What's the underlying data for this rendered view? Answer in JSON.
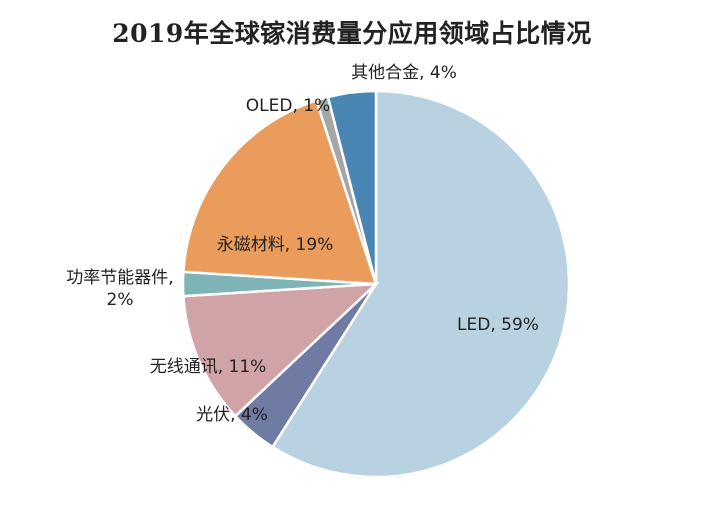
{
  "chart_data": {
    "type": "pie",
    "title": "2019年全球镓消费量分应用领域占比情况",
    "slices": [
      {
        "label": "LED",
        "value": 59,
        "display": "59%",
        "color": "#b8d2e2"
      },
      {
        "label": "光伏",
        "value": 4,
        "display": "4%",
        "color": "#6f7ba3"
      },
      {
        "label": "无线通讯",
        "value": 11,
        "display": "11%",
        "color": "#d0a3a6"
      },
      {
        "label": "功率节能器件",
        "value": 2,
        "display": "2%",
        "color": "#7fb4b6"
      },
      {
        "label": "永磁材料",
        "value": 19,
        "display": "19%",
        "color": "#e99c5c"
      },
      {
        "label": "OLED",
        "value": 1,
        "display": "1%",
        "color": "#a5a7a6"
      },
      {
        "label": "其他合金",
        "value": 4,
        "display": "4%",
        "color": "#4a86b4"
      }
    ],
    "start": "12 o'clock",
    "direction": "clockwise",
    "legend": "none"
  }
}
